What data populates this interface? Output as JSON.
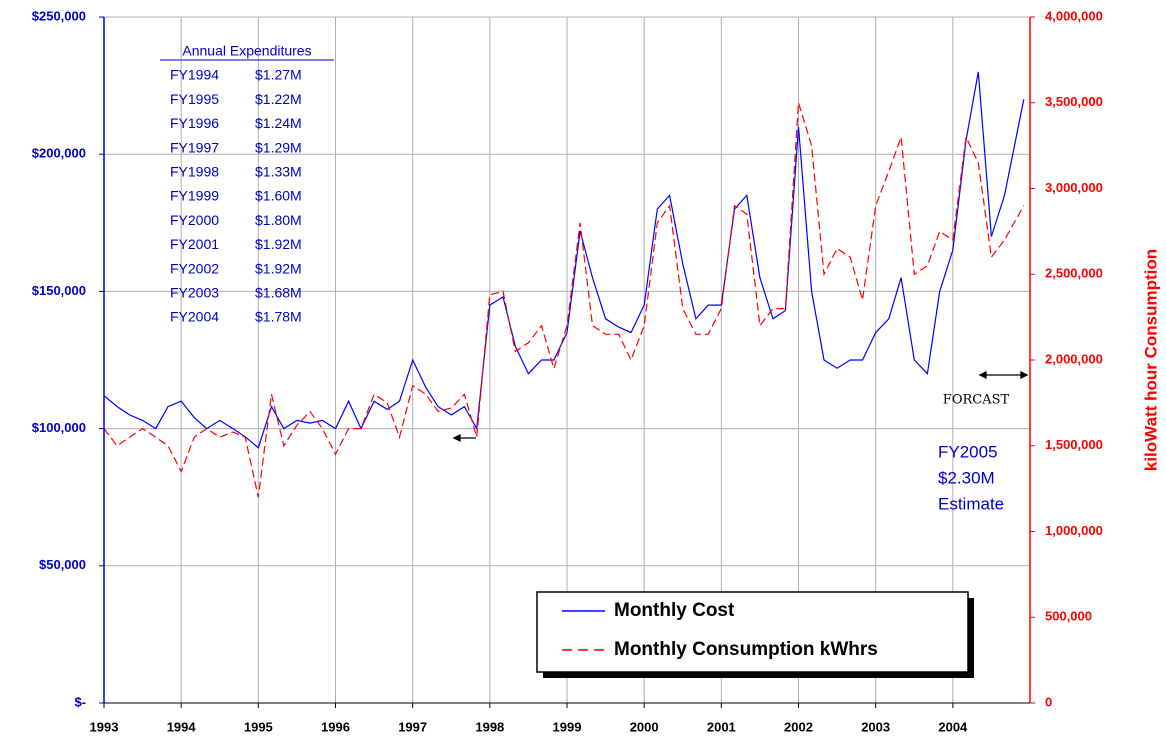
{
  "chart_data": {
    "type": "line",
    "x": [
      1993,
      1993.17,
      1993.33,
      1993.5,
      1993.67,
      1993.83,
      1994,
      1994.17,
      1994.33,
      1994.5,
      1994.67,
      1994.83,
      1995,
      1995.17,
      1995.33,
      1995.5,
      1995.67,
      1995.83,
      1996,
      1996.17,
      1996.33,
      1996.5,
      1996.67,
      1996.83,
      1997,
      1997.17,
      1997.33,
      1997.5,
      1997.67,
      1997.83,
      1998,
      1998.17,
      1998.33,
      1998.5,
      1998.67,
      1998.83,
      1999,
      1999.17,
      1999.33,
      1999.5,
      1999.67,
      1999.83,
      2000,
      2000.17,
      2000.33,
      2000.5,
      2000.67,
      2000.83,
      2001,
      2001.17,
      2001.33,
      2001.5,
      2001.67,
      2001.83,
      2002,
      2002.17,
      2002.33,
      2002.5,
      2002.67,
      2002.83,
      2003,
      2003.17,
      2003.33,
      2003.5,
      2003.67,
      2003.83,
      2004,
      2004.17,
      2004.33,
      2004.5,
      2004.67,
      2004.92
    ],
    "series": [
      {
        "name": "Monthly Cost",
        "color": "#0000ff",
        "axis": "y",
        "values": [
          112000,
          108000,
          105000,
          103000,
          100000,
          108000,
          110000,
          104000,
          100000,
          103000,
          100000,
          97000,
          93000,
          108000,
          100000,
          103000,
          102000,
          103000,
          100000,
          110000,
          100000,
          110000,
          107000,
          110000,
          125000,
          115000,
          108000,
          105000,
          108000,
          100000,
          145000,
          148000,
          130000,
          120000,
          125000,
          125000,
          135000,
          172000,
          155000,
          140000,
          137000,
          135000,
          145000,
          180000,
          185000,
          160000,
          140000,
          145000,
          145000,
          180000,
          185000,
          155000,
          140000,
          143000,
          210000,
          150000,
          125000,
          122000,
          125000,
          125000,
          135000,
          140000,
          155000,
          125000,
          120000,
          150000,
          165000,
          205000,
          230000,
          170000,
          185000,
          220000
        ]
      },
      {
        "name": "Monthly Consumption kWhrs",
        "color": "#ff0000",
        "axis": "y2",
        "values": [
          1600000,
          1500000,
          1550000,
          1600000,
          1550000,
          1500000,
          1350000,
          1550000,
          1600000,
          1550000,
          1580000,
          1550000,
          1200000,
          1800000,
          1500000,
          1620000,
          1700000,
          1600000,
          1450000,
          1600000,
          1600000,
          1800000,
          1750000,
          1550000,
          1850000,
          1800000,
          1700000,
          1720000,
          1800000,
          1550000,
          2380000,
          2400000,
          2050000,
          2100000,
          2200000,
          1950000,
          2200000,
          2800000,
          2200000,
          2150000,
          2150000,
          2000000,
          2200000,
          2800000,
          2900000,
          2300000,
          2150000,
          2150000,
          2300000,
          2900000,
          2850000,
          2200000,
          2300000,
          2300000,
          3500000,
          3250000,
          2500000,
          2650000,
          2600000,
          2350000,
          2900000,
          3100000,
          3300000,
          2500000,
          2550000,
          2750000,
          2700000,
          3300000,
          3150000,
          2600000,
          2700000,
          2900000
        ]
      }
    ],
    "xlim": [
      1993,
      2005
    ],
    "xticks": [
      1993,
      1994,
      1995,
      1996,
      1997,
      1998,
      1999,
      2000,
      2001,
      2002,
      2003,
      2004
    ],
    "ylim": [
      0,
      250000
    ],
    "yticks": [
      {
        "value": 0,
        "label": "$-"
      },
      {
        "value": 50000,
        "label": "$50,000"
      },
      {
        "value": 100000,
        "label": "$100,000"
      },
      {
        "value": 150000,
        "label": "$150,000"
      },
      {
        "value": 200000,
        "label": "$200,000"
      },
      {
        "value": 250000,
        "label": "$250,000"
      }
    ],
    "y2lim": [
      0,
      4000000
    ],
    "y2ticks": [
      0,
      {
        "value": 500000,
        "label": "500,000"
      },
      {
        "value": 1000000,
        "label": "1,000,000"
      },
      {
        "value": 1500000,
        "label": "1,500,000"
      },
      {
        "value": 2000000,
        "label": "2,000,000"
      },
      {
        "value": 2500000,
        "label": "2,500,000"
      },
      {
        "value": 3000000,
        "label": "3,000,000"
      },
      {
        "value": 3500000,
        "label": "3,500,000"
      },
      {
        "value": 4000000,
        "label": "4,000,000"
      }
    ],
    "y2_label": "kiloWatt hour  Consumption",
    "grid": true,
    "annotations": {
      "table_title": "Annual Expenditures",
      "table": [
        [
          "FY1994",
          "$1.27M"
        ],
        [
          "FY1995",
          "$1.22M"
        ],
        [
          "FY1996",
          "$1.24M"
        ],
        [
          "FY1997",
          "$1.29M"
        ],
        [
          "FY1998",
          "$1.33M"
        ],
        [
          "FY1999",
          "$1.60M"
        ],
        [
          "FY2000",
          "$1.80M"
        ],
        [
          "FY2001",
          "$1.92M"
        ],
        [
          "FY2002",
          "$1.92M"
        ],
        [
          "FY2003",
          "$1.68M"
        ],
        [
          "FY2004",
          "$1.78M"
        ]
      ],
      "forecast": "FORCAST",
      "estimate": [
        "FY2005",
        "$2.30M",
        "Estimate"
      ]
    }
  }
}
